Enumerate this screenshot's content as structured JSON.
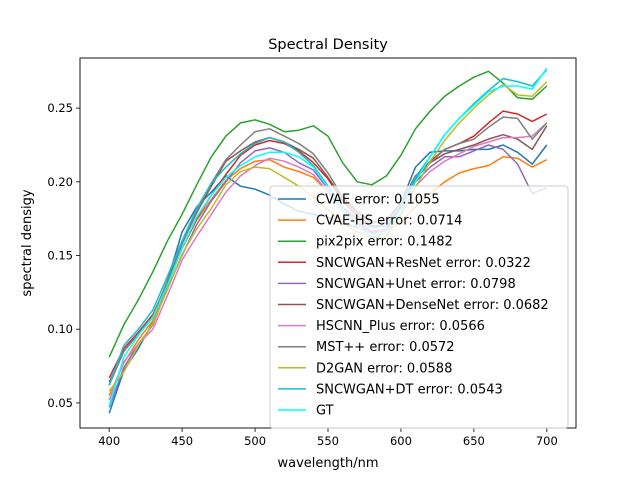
{
  "chart_data": {
    "type": "line",
    "title": "Spectral Density",
    "xlabel": "wavelength/nm",
    "ylabel": "spectral densigy",
    "xlim": [
      380,
      720
    ],
    "ylim": [
      0.033,
      0.284
    ],
    "xticks": [
      400,
      450,
      500,
      550,
      600,
      650,
      700
    ],
    "yticks": [
      0.05,
      0.1,
      0.15,
      0.2,
      0.25
    ],
    "xtick_labels": [
      "400",
      "450",
      "500",
      "550",
      "600",
      "650",
      "700"
    ],
    "ytick_labels": [
      "0.05",
      "0.10",
      "0.15",
      "0.20",
      "0.25"
    ],
    "grid": false,
    "legend_position": "lower-right",
    "x": [
      400,
      410,
      420,
      430,
      440,
      450,
      460,
      470,
      480,
      490,
      500,
      510,
      520,
      530,
      540,
      550,
      560,
      570,
      580,
      590,
      600,
      610,
      620,
      630,
      640,
      650,
      660,
      670,
      680,
      690,
      700
    ],
    "series": [
      {
        "name": "CVAE error: 0.1055",
        "color": "#1f77b4",
        "values": [
          0.043,
          0.072,
          0.087,
          0.105,
          0.133,
          0.166,
          0.183,
          0.193,
          0.204,
          0.197,
          0.195,
          0.191,
          0.185,
          0.18,
          0.178,
          0.176,
          0.172,
          0.169,
          0.166,
          0.168,
          0.186,
          0.21,
          0.22,
          0.221,
          0.221,
          0.222,
          0.222,
          0.225,
          0.22,
          0.212,
          0.225
        ]
      },
      {
        "name": "CVAE-HS error: 0.0714",
        "color": "#ff7f0e",
        "values": [
          0.055,
          0.077,
          0.093,
          0.106,
          0.13,
          0.155,
          0.174,
          0.188,
          0.201,
          0.209,
          0.214,
          0.215,
          0.21,
          0.207,
          0.203,
          0.193,
          0.18,
          0.172,
          0.165,
          0.167,
          0.173,
          0.183,
          0.192,
          0.2,
          0.206,
          0.209,
          0.211,
          0.217,
          0.216,
          0.21,
          0.215
        ]
      },
      {
        "name": "pix2pix error: 0.1482",
        "color": "#2ca02c",
        "values": [
          0.081,
          0.103,
          0.12,
          0.139,
          0.16,
          0.178,
          0.198,
          0.217,
          0.231,
          0.24,
          0.242,
          0.239,
          0.234,
          0.235,
          0.238,
          0.231,
          0.213,
          0.2,
          0.198,
          0.204,
          0.218,
          0.236,
          0.248,
          0.258,
          0.265,
          0.271,
          0.275,
          0.267,
          0.257,
          0.256,
          0.265
        ]
      },
      {
        "name": "SNCWGAN+ResNet error: 0.0322",
        "color": "#d62728",
        "values": [
          0.067,
          0.087,
          0.098,
          0.11,
          0.131,
          0.155,
          0.175,
          0.191,
          0.205,
          0.218,
          0.225,
          0.228,
          0.226,
          0.221,
          0.213,
          0.202,
          0.187,
          0.177,
          0.17,
          0.17,
          0.185,
          0.203,
          0.214,
          0.222,
          0.226,
          0.231,
          0.24,
          0.248,
          0.246,
          0.241,
          0.246
        ]
      },
      {
        "name": "SNCWGAN+Unet error: 0.0798",
        "color": "#9467bd",
        "values": [
          0.047,
          0.074,
          0.09,
          0.103,
          0.128,
          0.15,
          0.171,
          0.187,
          0.2,
          0.213,
          0.221,
          0.223,
          0.22,
          0.213,
          0.208,
          0.195,
          0.183,
          0.173,
          0.165,
          0.168,
          0.183,
          0.2,
          0.21,
          0.217,
          0.217,
          0.221,
          0.225,
          0.222,
          0.212,
          0.192,
          0.196
        ]
      },
      {
        "name": "SNCWGAN+DenseNet error: 0.0682",
        "color": "#8c564b",
        "values": [
          0.064,
          0.085,
          0.097,
          0.109,
          0.132,
          0.158,
          0.179,
          0.197,
          0.214,
          0.221,
          0.227,
          0.23,
          0.227,
          0.222,
          0.216,
          0.203,
          0.189,
          0.179,
          0.172,
          0.174,
          0.186,
          0.204,
          0.213,
          0.219,
          0.222,
          0.225,
          0.229,
          0.232,
          0.229,
          0.222,
          0.238
        ]
      },
      {
        "name": "HSCNN_Plus error: 0.0566",
        "color": "#e377c2",
        "values": [
          0.052,
          0.078,
          0.09,
          0.1,
          0.123,
          0.147,
          0.163,
          0.178,
          0.193,
          0.204,
          0.211,
          0.216,
          0.214,
          0.21,
          0.205,
          0.193,
          0.182,
          0.173,
          0.167,
          0.167,
          0.178,
          0.197,
          0.207,
          0.214,
          0.219,
          0.224,
          0.227,
          0.23,
          0.23,
          0.231,
          0.24
        ]
      },
      {
        "name": "MST++ error: 0.0572",
        "color": "#7f7f7f",
        "values": [
          0.062,
          0.085,
          0.097,
          0.109,
          0.133,
          0.158,
          0.18,
          0.199,
          0.215,
          0.225,
          0.234,
          0.236,
          0.231,
          0.226,
          0.219,
          0.206,
          0.19,
          0.18,
          0.173,
          0.172,
          0.184,
          0.202,
          0.213,
          0.222,
          0.226,
          0.229,
          0.237,
          0.244,
          0.243,
          0.229,
          0.24
        ]
      },
      {
        "name": "D2GAN error: 0.0588",
        "color": "#bcbd22",
        "values": [
          0.058,
          0.071,
          0.089,
          0.104,
          0.127,
          0.151,
          0.168,
          0.182,
          0.198,
          0.207,
          0.21,
          0.209,
          0.203,
          0.197,
          0.19,
          0.181,
          0.172,
          0.166,
          0.162,
          0.163,
          0.177,
          0.196,
          0.214,
          0.228,
          0.24,
          0.25,
          0.259,
          0.266,
          0.259,
          0.258,
          0.268
        ]
      },
      {
        "name": "SNCWGAN+DT error: 0.0543",
        "color": "#17becf",
        "values": [
          0.062,
          0.089,
          0.1,
          0.113,
          0.136,
          0.16,
          0.182,
          0.199,
          0.21,
          0.219,
          0.226,
          0.23,
          0.227,
          0.22,
          0.211,
          0.197,
          0.183,
          0.175,
          0.169,
          0.17,
          0.185,
          0.203,
          0.217,
          0.232,
          0.243,
          0.253,
          0.262,
          0.27,
          0.268,
          0.265,
          0.276
        ]
      },
      {
        "name": "GT",
        "color": "#00ffff",
        "values": [
          0.048,
          0.081,
          0.096,
          0.108,
          0.13,
          0.155,
          0.176,
          0.191,
          0.203,
          0.211,
          0.217,
          0.22,
          0.22,
          0.217,
          0.21,
          0.196,
          0.18,
          0.17,
          0.163,
          0.165,
          0.181,
          0.2,
          0.217,
          0.232,
          0.243,
          0.252,
          0.261,
          0.265,
          0.265,
          0.263,
          0.277
        ]
      }
    ]
  }
}
